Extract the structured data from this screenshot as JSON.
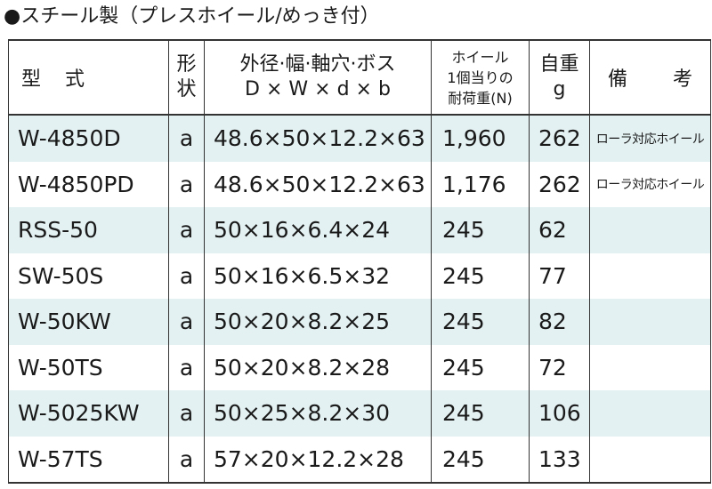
{
  "title": "●スチール製（プレスホイール/めっき付）",
  "header": {
    "model": "型 式",
    "shape_line1": "形",
    "shape_line2": "状",
    "dim_line1": "外径·幅·軸穴·ボス",
    "dim_line2": "D × W × d × b",
    "load_line1": "ホイール",
    "load_line2": "1個当りの",
    "load_line3": "耐荷重(N)",
    "weight_line1": "自重",
    "weight_line2": "g",
    "remarks": "備 考"
  },
  "rows": [
    {
      "model": "W-4850D",
      "shape": "a",
      "dim": "48.6×50×12.2×63",
      "load": "1,960",
      "weight": "262",
      "remarks": "ローラ対応ホイール"
    },
    {
      "model": "W-4850PD",
      "shape": "a",
      "dim": "48.6×50×12.2×63",
      "load": "1,176",
      "weight": "262",
      "remarks": "ローラ対応ホイール"
    },
    {
      "model": "RSS-50",
      "shape": "a",
      "dim": "50×16×6.4×24",
      "load": "245",
      "weight": "62",
      "remarks": ""
    },
    {
      "model": "SW-50S",
      "shape": "a",
      "dim": "50×16×6.5×32",
      "load": "245",
      "weight": "77",
      "remarks": ""
    },
    {
      "model": "W-50KW",
      "shape": "a",
      "dim": "50×20×8.2×25",
      "load": "245",
      "weight": "82",
      "remarks": ""
    },
    {
      "model": "W-50TS",
      "shape": "a",
      "dim": "50×20×8.2×28",
      "load": "245",
      "weight": "72",
      "remarks": ""
    },
    {
      "model": "W-5025KW",
      "shape": "a",
      "dim": "50×25×8.2×30",
      "load": "245",
      "weight": "106",
      "remarks": ""
    },
    {
      "model": "W-57TS",
      "shape": "a",
      "dim": "57×20×12.2×28",
      "load": "245",
      "weight": "133",
      "remarks": ""
    }
  ],
  "colors": {
    "shaded_row": "#e4f1f3",
    "border": "#333333"
  }
}
